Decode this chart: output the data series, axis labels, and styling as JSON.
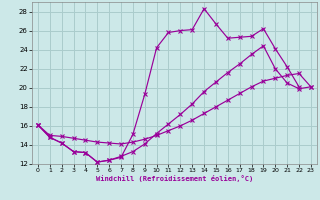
{
  "xlabel": "Windchill (Refroidissement éolien,°C)",
  "bg_color": "#cce8e8",
  "grid_color": "#aacccc",
  "line_color": "#990099",
  "xlim": [
    -0.5,
    23.5
  ],
  "ylim": [
    12,
    29
  ],
  "yticks": [
    12,
    14,
    16,
    18,
    20,
    22,
    24,
    26,
    28
  ],
  "xticks": [
    0,
    1,
    2,
    3,
    4,
    5,
    6,
    7,
    8,
    9,
    10,
    11,
    12,
    13,
    14,
    15,
    16,
    17,
    18,
    19,
    20,
    21,
    22,
    23
  ],
  "line1_x": [
    0,
    1,
    2,
    3,
    4,
    5,
    6,
    7,
    8,
    9,
    10,
    11,
    12,
    13,
    14,
    15,
    16,
    17,
    18,
    19,
    20,
    21,
    22
  ],
  "line1_y": [
    16.1,
    14.8,
    14.2,
    13.3,
    13.2,
    12.2,
    12.4,
    12.7,
    15.1,
    19.3,
    24.2,
    25.8,
    26.0,
    26.1,
    28.3,
    26.7,
    25.2,
    25.3,
    25.4,
    26.2,
    24.1,
    22.2,
    20.1
  ],
  "line2_x": [
    0,
    1,
    2,
    3,
    4,
    5,
    6,
    7,
    8,
    9,
    10,
    11,
    12,
    13,
    14,
    15,
    16,
    17,
    18,
    19,
    20,
    21,
    22,
    23
  ],
  "line2_y": [
    16.1,
    14.8,
    14.2,
    13.3,
    13.2,
    12.2,
    12.4,
    12.8,
    13.3,
    14.1,
    15.2,
    16.2,
    17.2,
    18.3,
    19.6,
    20.6,
    21.6,
    22.5,
    23.5,
    24.4,
    22.0,
    20.5,
    19.9,
    20.1
  ],
  "line3_x": [
    0,
    1,
    2,
    3,
    4,
    5,
    6,
    7,
    8,
    9,
    10,
    11,
    12,
    13,
    14,
    15,
    16,
    17,
    18,
    19,
    20,
    21,
    22,
    23
  ],
  "line3_y": [
    16.1,
    15.0,
    14.9,
    14.7,
    14.5,
    14.3,
    14.2,
    14.1,
    14.3,
    14.6,
    15.0,
    15.5,
    16.0,
    16.6,
    17.3,
    18.0,
    18.7,
    19.4,
    20.1,
    20.7,
    21.0,
    21.3,
    21.5,
    20.1
  ]
}
